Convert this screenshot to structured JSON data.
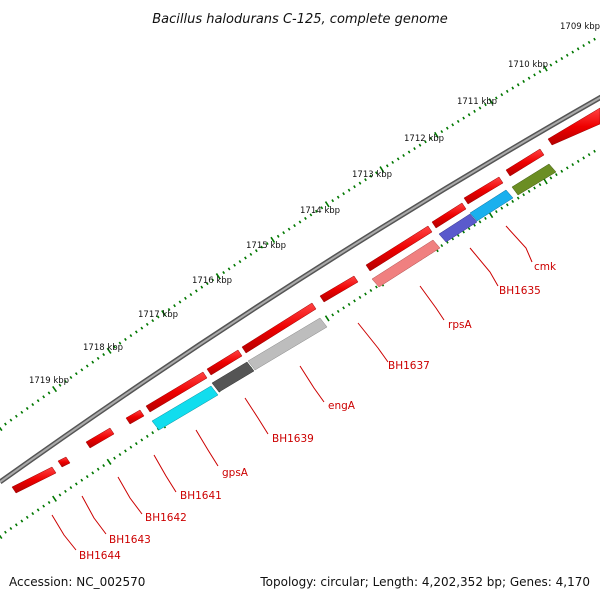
{
  "title": "Bacillus halodurans C-125, complete genome",
  "accession": "Accession: NC_002570",
  "summary": "Topology: circular; Length: 4,202,352 bp; Genes: 4,170",
  "ticks": [
    {
      "label": "1709 kbp"
    },
    {
      "label": "1710 kbp"
    },
    {
      "label": "1711 kbp"
    },
    {
      "label": "1712 kbp"
    },
    {
      "label": "1713 kbp"
    },
    {
      "label": "1714 kbp"
    },
    {
      "label": "1715 kbp"
    },
    {
      "label": "1716 kbp"
    },
    {
      "label": "1717 kbp"
    },
    {
      "label": "1718 kbp"
    },
    {
      "label": "1719 kbp"
    }
  ],
  "gene_labels": [
    {
      "text": "cmk"
    },
    {
      "text": "BH1635"
    },
    {
      "text": "rpsA"
    },
    {
      "text": "BH1637"
    },
    {
      "text": "engA"
    },
    {
      "text": "BH1639"
    },
    {
      "text": "gpsA"
    },
    {
      "text": "BH1641"
    },
    {
      "text": "BH1642"
    },
    {
      "text": "BH1643"
    },
    {
      "text": "BH1644"
    }
  ],
  "colors": {
    "gene_forward": "#ee0000",
    "tick": "#007700",
    "backbone": "#777777",
    "cmk": "#6b8e23",
    "BH1635": "#1ab0ee",
    "BH1635b": "#5a5acc",
    "rpsA": "#f08080",
    "engA": "#bdbdbd",
    "BH1639": "#555555",
    "gpsA": "#11ddee",
    "label": "#cc0000"
  }
}
